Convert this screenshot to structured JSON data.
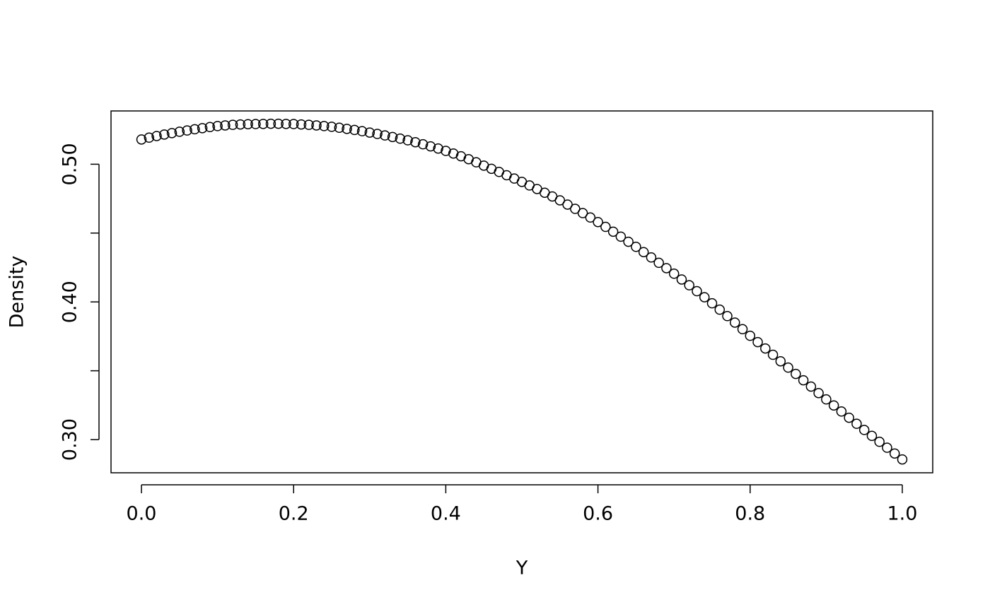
{
  "chart_data": {
    "type": "scatter",
    "x_label": "Y",
    "y_label": "Density",
    "x": [
      0,
      0.01,
      0.02,
      0.03,
      0.04,
      0.05,
      0.06,
      0.07,
      0.08,
      0.09,
      0.1,
      0.11,
      0.12,
      0.13,
      0.14,
      0.15,
      0.16,
      0.17,
      0.18,
      0.19,
      0.2,
      0.21,
      0.22,
      0.23,
      0.24,
      0.25,
      0.26,
      0.27,
      0.28,
      0.29,
      0.3,
      0.31,
      0.32,
      0.33,
      0.34,
      0.35,
      0.36,
      0.37,
      0.38,
      0.39,
      0.4,
      0.41,
      0.42,
      0.43,
      0.44,
      0.45,
      0.46,
      0.47,
      0.48,
      0.49,
      0.5,
      0.51,
      0.52,
      0.53,
      0.54,
      0.55,
      0.56,
      0.57,
      0.58,
      0.59,
      0.6,
      0.61,
      0.62,
      0.63,
      0.64,
      0.65,
      0.66,
      0.67,
      0.68,
      0.69,
      0.7,
      0.71,
      0.72,
      0.73,
      0.74,
      0.75,
      0.76,
      0.77,
      0.78,
      0.79,
      0.8,
      0.81,
      0.82,
      0.83,
      0.84,
      0.85,
      0.86,
      0.87,
      0.88,
      0.89,
      0.9,
      0.91,
      0.92,
      0.93,
      0.94,
      0.95,
      0.96,
      0.97,
      0.98,
      0.99,
      1
    ],
    "values": [
      0.518,
      0.5193,
      0.5205,
      0.5216,
      0.5226,
      0.5236,
      0.5245,
      0.5254,
      0.5262,
      0.527,
      0.5277,
      0.5282,
      0.5286,
      0.5289,
      0.5291,
      0.5292,
      0.5293,
      0.5294,
      0.5294,
      0.5293,
      0.5292,
      0.5289,
      0.5286,
      0.5282,
      0.5277,
      0.5272,
      0.5265,
      0.5257,
      0.5249,
      0.524,
      0.523,
      0.522,
      0.5209,
      0.5198,
      0.5186,
      0.5174,
      0.516,
      0.5145,
      0.513,
      0.5114,
      0.5097,
      0.5078,
      0.5058,
      0.5037,
      0.5014,
      0.499,
      0.4967,
      0.4944,
      0.492,
      0.4896,
      0.4872,
      0.4846,
      0.482,
      0.4793,
      0.4766,
      0.4738,
      0.4707,
      0.4676,
      0.4645,
      0.4613,
      0.458,
      0.4545,
      0.451,
      0.4474,
      0.4437,
      0.44,
      0.4362,
      0.4323,
      0.4284,
      0.4245,
      0.4205,
      0.4163,
      0.4121,
      0.4078,
      0.4034,
      0.399,
      0.3944,
      0.3897,
      0.385,
      0.3802,
      0.3754,
      0.3708,
      0.3662,
      0.3616,
      0.3569,
      0.3523,
      0.3477,
      0.3431,
      0.3385,
      0.3338,
      0.3292,
      0.3248,
      0.3204,
      0.3159,
      0.3115,
      0.307,
      0.3027,
      0.2984,
      0.2941,
      0.2899,
      0.2856
    ],
    "color": "#000000",
    "xlim": [
      -0.04,
      1.04
    ],
    "ylim": [
      0.2759,
      0.5387
    ],
    "xticks": [
      {
        "value": 0,
        "label": "0.0"
      },
      {
        "value": 0.2,
        "label": "0.2"
      },
      {
        "value": 0.4,
        "label": "0.4"
      },
      {
        "value": 0.6,
        "label": "0.6"
      },
      {
        "value": 0.8,
        "label": "0.8"
      },
      {
        "value": 1,
        "label": "1.0"
      }
    ],
    "yticks": [
      {
        "value": 0.3,
        "label": "0.30"
      },
      {
        "value": 0.35,
        "label": null
      },
      {
        "value": 0.4,
        "label": "0.40"
      },
      {
        "value": 0.45,
        "label": null
      },
      {
        "value": 0.5,
        "label": "0.50"
      }
    ]
  }
}
